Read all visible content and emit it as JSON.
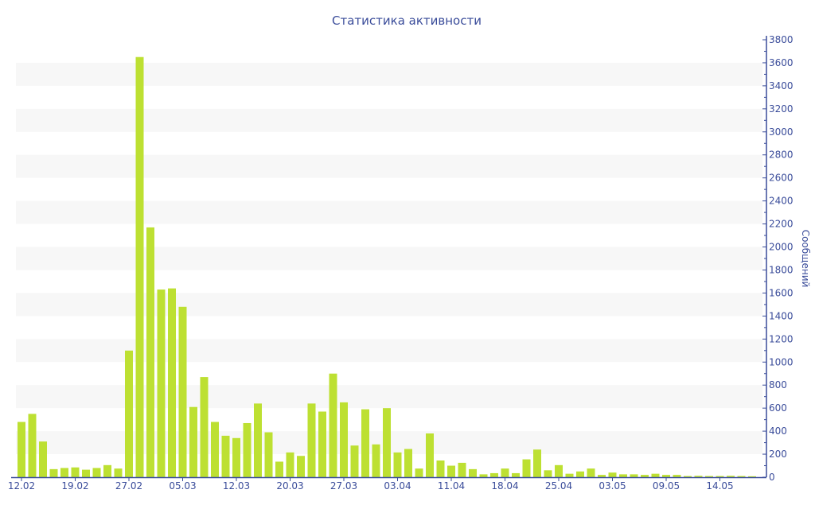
{
  "chart_data": {
    "type": "bar",
    "title": "Статистика активности",
    "xlabel": "",
    "ylabel": "Сообщений",
    "ylim": [
      0,
      3800
    ],
    "y_ticks": [
      0,
      200,
      400,
      600,
      800,
      1000,
      1200,
      1400,
      1600,
      1800,
      2000,
      2200,
      2400,
      2600,
      2800,
      3000,
      3200,
      3400,
      3600,
      3800
    ],
    "y_axis_side": "right",
    "grid": "alternating horizontal bands",
    "bar_color": "#bde032",
    "axis_color": "#3a4c9a",
    "x_tick_labels": [
      {
        "bar_index": 0,
        "label": "12.02"
      },
      {
        "bar_index": 5,
        "label": "19.02"
      },
      {
        "bar_index": 10,
        "label": "27.02"
      },
      {
        "bar_index": 15,
        "label": "05.03"
      },
      {
        "bar_index": 20,
        "label": "12.03"
      },
      {
        "bar_index": 25,
        "label": "20.03"
      },
      {
        "bar_index": 30,
        "label": "27.03"
      },
      {
        "bar_index": 35,
        "label": "03.04"
      },
      {
        "bar_index": 40,
        "label": "11.04"
      },
      {
        "bar_index": 45,
        "label": "18.04"
      },
      {
        "bar_index": 50,
        "label": "25.04"
      },
      {
        "bar_index": 55,
        "label": "03.05"
      },
      {
        "bar_index": 60,
        "label": "09.05"
      },
      {
        "bar_index": 65,
        "label": "14.05"
      }
    ],
    "values": [
      480,
      550,
      310,
      70,
      80,
      85,
      65,
      80,
      105,
      75,
      1100,
      3650,
      2170,
      1630,
      1640,
      1480,
      610,
      870,
      480,
      360,
      340,
      470,
      640,
      390,
      135,
      215,
      185,
      640,
      570,
      900,
      650,
      275,
      590,
      285,
      600,
      215,
      245,
      75,
      380,
      145,
      100,
      125,
      70,
      25,
      35,
      75,
      35,
      155,
      240,
      60,
      105,
      30,
      50,
      75,
      20,
      40,
      25,
      25,
      20,
      30,
      20,
      20,
      10,
      12,
      10,
      10,
      12,
      10,
      8
    ]
  }
}
